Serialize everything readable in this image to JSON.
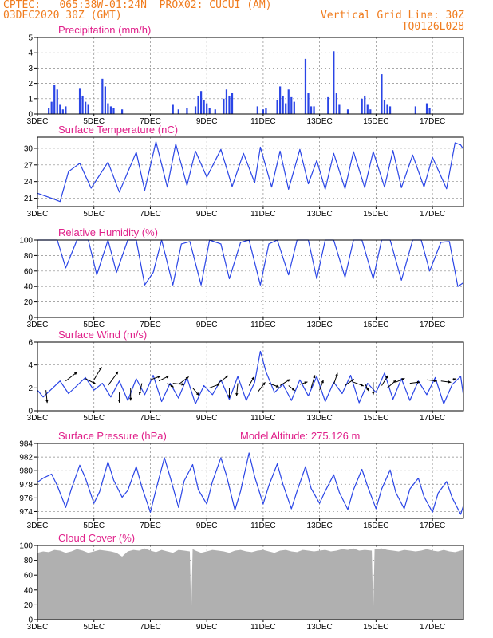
{
  "header": {
    "line1_left": "CPTEC:   065:38W-01:24N  PROX02: CUCUI (AM)",
    "line2_left": "03DEC2020 30Z (GMT)",
    "line2_right": "Vertical Grid Line: 30Z",
    "line3_right": "TQ0126L028"
  },
  "colors": {
    "header": "#f07c1e",
    "title": "#e0208a",
    "series": "#2a45e6",
    "precip": "#2a45e6",
    "cloud": "#b0b0b0",
    "arrow": "#000000",
    "grid": "#8a8a8a"
  },
  "chart_data": [
    {
      "type": "bar",
      "title": "Precipitation (mm/h)",
      "ylim": [
        0,
        5
      ],
      "yticks": [
        0,
        1,
        2,
        3,
        4,
        5
      ],
      "xticks": [
        "3DEC",
        "5DEC",
        "7DEC",
        "9DEC",
        "11DEC",
        "13DEC",
        "15DEC",
        "17DEC"
      ],
      "x_days": [
        3,
        5,
        7,
        9,
        11,
        13,
        15,
        17
      ],
      "x_range": [
        3,
        18.1
      ],
      "x": [
        3.4,
        3.5,
        3.6,
        3.7,
        3.8,
        3.9,
        4.0,
        4.5,
        4.6,
        4.7,
        4.8,
        5.3,
        5.4,
        5.5,
        5.6,
        5.7,
        6.0,
        7.8,
        8.0,
        8.3,
        8.6,
        8.7,
        8.8,
        8.9,
        9.0,
        9.1,
        9.3,
        9.6,
        9.7,
        9.8,
        9.9,
        10.8,
        11.0,
        11.1,
        11.5,
        11.6,
        11.7,
        11.8,
        11.9,
        12.0,
        12.1,
        12.5,
        12.6,
        12.7,
        12.8,
        13.3,
        13.5,
        13.6,
        13.7,
        14.0,
        14.5,
        14.6,
        14.7,
        14.8,
        15.2,
        15.3,
        15.4,
        15.5,
        16.4,
        16.8,
        16.9
      ],
      "values": [
        0.4,
        0.8,
        1.9,
        1.6,
        0.6,
        0.3,
        0.5,
        1.7,
        1.2,
        0.8,
        0.6,
        2.3,
        1.8,
        0.7,
        0.5,
        0.4,
        0.3,
        0.6,
        0.3,
        0.4,
        0.5,
        1.2,
        1.5,
        0.9,
        0.7,
        0.4,
        0.3,
        1.0,
        1.6,
        1.2,
        1.4,
        0.5,
        0.3,
        0.4,
        0.9,
        1.8,
        1.2,
        0.7,
        1.6,
        1.1,
        0.8,
        3.6,
        1.4,
        0.5,
        0.5,
        1.1,
        4.1,
        1.4,
        0.6,
        0.3,
        1.0,
        1.2,
        0.6,
        0.3,
        2.6,
        0.9,
        0.6,
        0.5,
        0.5,
        0.7,
        0.4
      ]
    },
    {
      "type": "line",
      "title": "Surface Temperature (nC)",
      "ylim": [
        19.5,
        32
      ],
      "yticks": [
        21,
        24,
        27,
        30
      ],
      "xticks": [
        "3DEC",
        "5DEC",
        "7DEC",
        "9DEC",
        "11DEC",
        "13DEC",
        "15DEC",
        "17DEC"
      ],
      "x_days": [
        3,
        5,
        7,
        9,
        11,
        13,
        15,
        17
      ],
      "x_range": [
        3,
        18.1
      ],
      "x": [
        3.0,
        3.5,
        3.8,
        4.1,
        4.5,
        4.9,
        5.5,
        5.9,
        6.5,
        6.8,
        7.2,
        7.6,
        7.9,
        8.3,
        8.6,
        9.0,
        9.5,
        9.9,
        10.3,
        10.7,
        10.9,
        11.3,
        11.6,
        11.9,
        12.3,
        12.6,
        12.9,
        13.2,
        13.5,
        13.9,
        14.2,
        14.6,
        14.9,
        15.3,
        15.6,
        15.9,
        16.3,
        16.7,
        17.0,
        17.5,
        17.8,
        18.0,
        18.1
      ],
      "values": [
        21.9,
        21.0,
        20.4,
        25.8,
        27.3,
        22.8,
        27.5,
        22.1,
        29.3,
        22.4,
        31.2,
        23.0,
        30.8,
        23.3,
        29.5,
        24.8,
        29.8,
        23.1,
        29.1,
        23.8,
        30.2,
        23.0,
        29.5,
        22.6,
        29.8,
        23.6,
        27.8,
        22.6,
        29.1,
        22.7,
        29.4,
        22.9,
        29.4,
        23.0,
        29.6,
        22.9,
        28.8,
        23.0,
        28.4,
        22.7,
        31.0,
        30.6,
        29.8
      ]
    },
    {
      "type": "line",
      "title": "Relative Humidity (%)",
      "ylim": [
        0,
        100
      ],
      "yticks": [
        0,
        20,
        40,
        60,
        80,
        100
      ],
      "xticks": [
        "3DEC",
        "5DEC",
        "7DEC",
        "9DEC",
        "11DEC",
        "13DEC",
        "15DEC",
        "17DEC"
      ],
      "x_days": [
        3,
        5,
        7,
        9,
        11,
        13,
        15,
        17
      ],
      "x_range": [
        3,
        18.1
      ],
      "x": [
        3.0,
        3.4,
        3.7,
        4.0,
        4.4,
        4.8,
        5.1,
        5.5,
        5.8,
        6.2,
        6.5,
        6.8,
        7.1,
        7.4,
        7.8,
        8.1,
        8.4,
        8.8,
        9.1,
        9.5,
        9.8,
        10.2,
        10.5,
        10.9,
        11.2,
        11.5,
        11.9,
        12.2,
        12.6,
        12.9,
        13.2,
        13.5,
        13.9,
        14.2,
        14.5,
        14.9,
        15.2,
        15.5,
        15.9,
        16.3,
        16.6,
        16.9,
        17.3,
        17.6,
        17.9,
        18.1
      ],
      "values": [
        100,
        100,
        100,
        64,
        100,
        100,
        55,
        100,
        58,
        100,
        100,
        42,
        58,
        100,
        42,
        95,
        98,
        42,
        100,
        95,
        50,
        97,
        100,
        42,
        95,
        100,
        55,
        100,
        100,
        50,
        100,
        100,
        52,
        100,
        100,
        50,
        100,
        100,
        48,
        100,
        100,
        60,
        97,
        98,
        40,
        45
      ]
    },
    {
      "type": "line",
      "title": "Surface Wind (m/s)",
      "ylim": [
        0,
        6
      ],
      "yticks": [
        0,
        2,
        4,
        6
      ],
      "xticks": [
        "3DEC",
        "5DEC",
        "7DEC",
        "9DEC",
        "11DEC",
        "13DEC",
        "15DEC",
        "17DEC"
      ],
      "x_days": [
        3,
        5,
        7,
        9,
        11,
        13,
        15,
        17
      ],
      "x_range": [
        3,
        18.1
      ],
      "x": [
        3.0,
        3.2,
        3.5,
        3.8,
        4.1,
        4.4,
        4.7,
        5.0,
        5.3,
        5.6,
        5.9,
        6.2,
        6.5,
        6.8,
        7.1,
        7.4,
        7.7,
        8.0,
        8.3,
        8.6,
        8.9,
        9.2,
        9.5,
        9.8,
        10.1,
        10.4,
        10.7,
        10.9,
        11.1,
        11.4,
        11.7,
        12.0,
        12.3,
        12.6,
        12.9,
        13.2,
        13.5,
        13.8,
        14.1,
        14.4,
        14.7,
        15.0,
        15.3,
        15.6,
        15.9,
        16.2,
        16.5,
        16.8,
        17.1,
        17.4,
        17.7,
        18.0,
        18.1
      ],
      "values": [
        1.8,
        1.2,
        1.9,
        2.6,
        1.5,
        2.2,
        2.9,
        1.8,
        2.4,
        1.2,
        2.6,
        0.9,
        2.8,
        1.4,
        3.1,
        0.8,
        2.4,
        1.1,
        2.9,
        0.6,
        2.2,
        1.4,
        2.7,
        1.0,
        3.0,
        0.9,
        2.5,
        5.2,
        3.4,
        1.6,
        2.3,
        0.9,
        2.7,
        1.3,
        3.0,
        0.8,
        2.5,
        1.5,
        3.1,
        0.7,
        2.4,
        1.6,
        3.3,
        1.0,
        2.8,
        0.9,
        2.6,
        1.4,
        2.9,
        0.6,
        2.3,
        3.0,
        1.3
      ],
      "arrows": [
        {
          "x": 3.3,
          "y": 1.8,
          "u": 0.1,
          "v": -1.0
        },
        {
          "x": 4.0,
          "y": 2.6,
          "u": 0.9,
          "v": 0.7
        },
        {
          "x": 4.7,
          "y": 2.8,
          "u": 0.8,
          "v": -0.4
        },
        {
          "x": 5.0,
          "y": 2.7,
          "u": 0.6,
          "v": 1.0
        },
        {
          "x": 5.5,
          "y": 2.2,
          "u": 0.8,
          "v": 1.1
        },
        {
          "x": 5.9,
          "y": 1.6,
          "u": 0.0,
          "v": -0.8
        },
        {
          "x": 6.3,
          "y": 2.0,
          "u": 0.0,
          "v": -1.0
        },
        {
          "x": 6.7,
          "y": 2.4,
          "u": -0.2,
          "v": -0.9
        },
        {
          "x": 7.0,
          "y": 2.7,
          "u": 0.8,
          "v": 0.3
        },
        {
          "x": 7.3,
          "y": 2.6,
          "u": 0.8,
          "v": 0.4
        },
        {
          "x": 7.6,
          "y": 2.4,
          "u": 0.5,
          "v": -0.3
        },
        {
          "x": 7.8,
          "y": 2.4,
          "u": 0.9,
          "v": -0.1
        },
        {
          "x": 8.0,
          "y": 2.3,
          "u": 0.8,
          "v": 0.6
        },
        {
          "x": 8.5,
          "y": 2.0,
          "u": 0.5,
          "v": -0.6
        },
        {
          "x": 9.1,
          "y": 2.0,
          "u": 0.8,
          "v": 0.3
        },
        {
          "x": 9.4,
          "y": 2.4,
          "u": 0.8,
          "v": 0.6
        },
        {
          "x": 9.8,
          "y": 2.0,
          "u": 0.0,
          "v": -0.8
        },
        {
          "x": 10.1,
          "y": 2.4,
          "u": -0.1,
          "v": -1.0
        },
        {
          "x": 10.5,
          "y": 2.2,
          "u": 0.4,
          "v": 0.7
        },
        {
          "x": 10.8,
          "y": 1.6,
          "u": 0.6,
          "v": 0.8
        },
        {
          "x": 11.2,
          "y": 2.4,
          "u": 0.8,
          "v": -0.3
        },
        {
          "x": 11.6,
          "y": 2.2,
          "u": 0.8,
          "v": 0.5
        },
        {
          "x": 11.9,
          "y": 2.2,
          "u": 0.5,
          "v": -0.4
        },
        {
          "x": 12.3,
          "y": 2.3,
          "u": 0.6,
          "v": 0.2
        },
        {
          "x": 12.7,
          "y": 2.0,
          "u": 0.3,
          "v": 1.0
        },
        {
          "x": 13.0,
          "y": 1.8,
          "u": 0.3,
          "v": 0.8
        },
        {
          "x": 13.5,
          "y": 2.3,
          "u": 0.3,
          "v": 0.9
        },
        {
          "x": 13.9,
          "y": 2.2,
          "u": 0.7,
          "v": 0.5
        },
        {
          "x": 14.2,
          "y": 2.5,
          "u": 0.8,
          "v": -0.3
        },
        {
          "x": 14.6,
          "y": 2.4,
          "u": 0.3,
          "v": -0.6
        },
        {
          "x": 14.9,
          "y": 2.5,
          "u": 0.0,
          "v": -1.0
        },
        {
          "x": 15.2,
          "y": 2.2,
          "u": 0.5,
          "v": 0.8
        },
        {
          "x": 15.4,
          "y": 2.0,
          "u": 0.7,
          "v": 0.6
        },
        {
          "x": 15.7,
          "y": 2.5,
          "u": 0.7,
          "v": 0.3
        },
        {
          "x": 16.2,
          "y": 2.4,
          "u": 0.8,
          "v": 0.1
        },
        {
          "x": 16.8,
          "y": 2.7,
          "u": 0.8,
          "v": -0.1
        },
        {
          "x": 17.3,
          "y": 2.6,
          "u": 0.8,
          "v": -0.1
        },
        {
          "x": 17.7,
          "y": 2.7,
          "u": 0.3,
          "v": 0.1
        }
      ]
    },
    {
      "type": "line",
      "title": "Surface Pressure (hPa)",
      "subtitle": "Model Altitude: 275.126 m",
      "ylim": [
        973,
        984
      ],
      "yticks": [
        974,
        976,
        978,
        980,
        982,
        984
      ],
      "xticks": [
        "3DEC",
        "5DEC",
        "7DEC",
        "9DEC",
        "11DEC",
        "13DEC",
        "15DEC",
        "17DEC"
      ],
      "x_days": [
        3,
        5,
        7,
        9,
        11,
        13,
        15,
        17
      ],
      "x_range": [
        3,
        18.1
      ],
      "x": [
        3.0,
        3.2,
        3.5,
        3.7,
        4.0,
        4.2,
        4.5,
        4.7,
        5.0,
        5.2,
        5.5,
        5.7,
        6.0,
        6.2,
        6.5,
        6.7,
        7.0,
        7.2,
        7.5,
        7.7,
        8.0,
        8.2,
        8.5,
        8.7,
        9.0,
        9.2,
        9.5,
        9.7,
        10.0,
        10.2,
        10.5,
        10.7,
        11.0,
        11.2,
        11.5,
        11.7,
        12.0,
        12.2,
        12.5,
        12.7,
        13.0,
        13.2,
        13.5,
        13.7,
        14.0,
        14.2,
        14.5,
        14.7,
        15.0,
        15.2,
        15.5,
        15.7,
        16.0,
        16.2,
        16.5,
        16.7,
        17.0,
        17.2,
        17.5,
        17.7,
        18.0,
        18.1
      ],
      "values": [
        978.3,
        978.9,
        979.5,
        977.8,
        974.6,
        977.3,
        980.8,
        978.9,
        975.2,
        976.9,
        981.3,
        978.6,
        976.1,
        977.1,
        980.6,
        977.6,
        973.9,
        977.2,
        981.9,
        979.1,
        974.6,
        978.5,
        980.9,
        977.2,
        975.1,
        978.4,
        981.9,
        979.3,
        974.2,
        977.0,
        982.6,
        979.1,
        975.1,
        977.8,
        981.0,
        978.0,
        974.4,
        977.0,
        980.6,
        977.4,
        975.2,
        977.0,
        979.4,
        976.8,
        974.3,
        977.2,
        980.2,
        977.7,
        974.4,
        977.3,
        980.1,
        976.8,
        974.4,
        977.3,
        978.9,
        976.2,
        973.9,
        976.7,
        978.4,
        976.0,
        973.6,
        974.9
      ]
    },
    {
      "type": "area",
      "title": "Cloud Cover (%)",
      "ylim": [
        0,
        100
      ],
      "yticks": [
        0,
        20,
        40,
        60,
        80,
        100
      ],
      "xticks": [
        "3DEC",
        "5DEC",
        "7DEC",
        "9DEC",
        "11DEC",
        "13DEC",
        "15DEC",
        "17DEC"
      ],
      "x_days": [
        3,
        5,
        7,
        9,
        11,
        13,
        15,
        17
      ],
      "x_range": [
        3,
        18.1
      ],
      "x": [
        3.0,
        3.2,
        3.4,
        3.6,
        3.8,
        4.0,
        4.2,
        4.4,
        4.6,
        4.8,
        5.0,
        5.2,
        5.4,
        5.6,
        5.8,
        6.0,
        6.2,
        6.4,
        6.6,
        6.8,
        7.0,
        7.2,
        7.4,
        7.6,
        7.8,
        8.0,
        8.2,
        8.4,
        8.45,
        8.5,
        8.6,
        8.8,
        9.0,
        9.2,
        9.4,
        9.6,
        9.8,
        10.0,
        10.2,
        10.4,
        10.6,
        10.8,
        11.0,
        11.2,
        11.4,
        11.6,
        11.8,
        12.0,
        12.2,
        12.4,
        12.6,
        12.8,
        13.0,
        13.2,
        13.4,
        13.6,
        13.8,
        14.0,
        14.2,
        14.4,
        14.6,
        14.85,
        14.9,
        14.95,
        15.2,
        15.4,
        15.6,
        15.8,
        16.0,
        16.2,
        16.4,
        16.6,
        16.8,
        17.0,
        17.2,
        17.4,
        17.6,
        17.8,
        18.0,
        18.1
      ],
      "values": [
        90,
        92,
        91,
        94,
        93,
        90,
        92,
        95,
        93,
        90,
        92,
        94,
        93,
        92,
        90,
        85,
        92,
        94,
        93,
        96,
        93,
        91,
        94,
        92,
        90,
        94,
        93,
        92,
        5,
        95,
        93,
        90,
        92,
        94,
        93,
        92,
        90,
        93,
        94,
        92,
        91,
        93,
        94,
        92,
        90,
        93,
        94,
        92,
        91,
        94,
        93,
        92,
        93,
        94,
        92,
        93,
        95,
        94,
        96,
        93,
        94,
        93,
        10,
        95,
        96,
        94,
        93,
        92,
        94,
        93,
        92,
        93,
        95,
        93,
        92,
        94,
        92,
        91,
        93,
        94
      ]
    }
  ]
}
